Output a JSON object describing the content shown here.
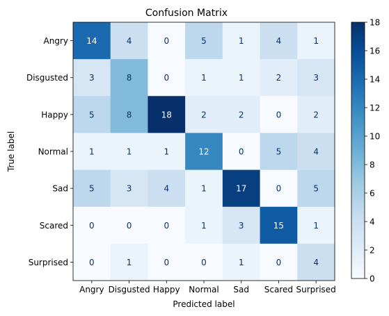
{
  "chart_data": {
    "type": "heatmap",
    "title": "Confusion Matrix",
    "xlabel": "Predicted label",
    "ylabel": "True label",
    "x_categories": [
      "Angry",
      "Disgusted",
      "Happy",
      "Normal",
      "Sad",
      "Scared",
      "Surprised"
    ],
    "y_categories": [
      "Angry",
      "Disgusted",
      "Happy",
      "Normal",
      "Sad",
      "Scared",
      "Surprised"
    ],
    "values": [
      [
        14,
        4,
        0,
        5,
        1,
        4,
        1
      ],
      [
        3,
        8,
        0,
        1,
        1,
        2,
        3
      ],
      [
        5,
        8,
        18,
        2,
        2,
        0,
        2
      ],
      [
        1,
        1,
        1,
        12,
        0,
        5,
        4
      ],
      [
        5,
        3,
        4,
        1,
        17,
        0,
        5
      ],
      [
        0,
        0,
        0,
        1,
        3,
        15,
        1
      ],
      [
        0,
        1,
        0,
        0,
        1,
        0,
        4
      ]
    ],
    "colormap": "Blues",
    "colorbar": {
      "min": 0,
      "max": 18,
      "ticks": [
        0,
        2,
        4,
        6,
        8,
        10,
        12,
        14,
        16,
        18
      ]
    },
    "grid": false
  }
}
